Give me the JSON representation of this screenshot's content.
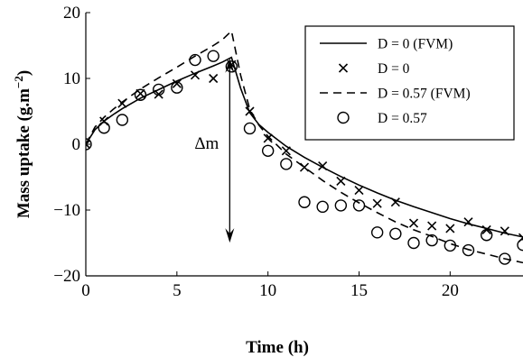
{
  "chart_data": {
    "type": "line",
    "xlabel": "Time (h)",
    "ylabel": "Mass uptake (g.m",
    "ylabel_sup": "−2",
    "ylabel_close": ")",
    "xlim": [
      0,
      24
    ],
    "ylim": [
      -20,
      20
    ],
    "xticks": [
      0,
      5,
      10,
      15,
      20
    ],
    "xtick_labels": [
      "0",
      "5",
      "10",
      "15",
      "20"
    ],
    "yticks": [
      -20,
      -10,
      0,
      10,
      20
    ],
    "ytick_labels": [
      "−20",
      "−10",
      "0",
      "10",
      "20"
    ],
    "grid": false,
    "legend_position": "top-right",
    "annotation": {
      "text": "Δm",
      "x": 8,
      "y_top": 12.5,
      "y_bottom": -15.5
    },
    "series": [
      {
        "name": "D = 0 (FVM)",
        "style": "solid-line",
        "x": [
          0,
          0.5,
          1,
          1.5,
          2,
          3,
          4,
          5,
          6,
          7,
          7.5,
          8,
          8.5,
          9,
          9.5,
          10,
          11,
          12,
          13,
          14,
          15,
          16,
          17,
          18,
          19,
          20,
          21,
          22,
          23,
          24
        ],
        "y": [
          0,
          2.2,
          3.5,
          4.5,
          5.4,
          7.0,
          8.3,
          9.6,
          10.8,
          11.9,
          12.5,
          13.2,
          8.5,
          4.8,
          3.0,
          1.8,
          -0.3,
          -2.0,
          -3.5,
          -4.9,
          -6.2,
          -7.4,
          -8.5,
          -9.5,
          -10.4,
          -11.3,
          -12.1,
          -12.8,
          -13.5,
          -14.1
        ]
      },
      {
        "name": "D = 0",
        "style": "x-marker",
        "x": [
          0,
          1,
          2,
          3,
          4,
          5,
          6,
          7,
          8,
          9,
          10,
          11,
          12,
          13,
          14,
          15,
          16,
          17,
          18,
          19,
          20,
          21,
          22,
          23,
          24
        ],
        "y": [
          0,
          3.5,
          6.2,
          7.7,
          7.6,
          9.2,
          10.5,
          10.0,
          12.1,
          5.0,
          0.9,
          -1.0,
          -3.5,
          -3.3,
          -5.6,
          -7.0,
          -9.0,
          -8.8,
          -12.0,
          -12.4,
          -12.8,
          -11.8,
          -13.0,
          -13.2,
          -14.2
        ]
      },
      {
        "name": "D = 0.57 (FVM)",
        "style": "dashed-line",
        "x": [
          0,
          0.5,
          1,
          1.5,
          2,
          3,
          4,
          5,
          6,
          7,
          7.5,
          8,
          8.5,
          9,
          9.5,
          10,
          11,
          12,
          13,
          14,
          15,
          16,
          17,
          18,
          19,
          20,
          21,
          22,
          23,
          24
        ],
        "y": [
          0,
          2.6,
          4.1,
          5.3,
          6.4,
          8.4,
          10.1,
          11.7,
          13.4,
          15.0,
          15.9,
          17.2,
          10.5,
          5.3,
          2.9,
          1.2,
          -1.5,
          -3.5,
          -5.5,
          -7.3,
          -8.9,
          -10.4,
          -11.8,
          -13.0,
          -14.0,
          -15.1,
          -16.0,
          -16.7,
          -17.4,
          -18.0
        ]
      },
      {
        "name": "D = 0.57",
        "style": "circle-marker",
        "x": [
          0,
          1,
          2,
          3,
          4,
          5,
          6,
          7,
          8,
          9,
          10,
          11,
          12,
          13,
          14,
          15,
          16,
          17,
          18,
          19,
          20,
          21,
          22,
          23,
          24
        ],
        "y": [
          0,
          2.5,
          3.7,
          7.5,
          8.3,
          8.6,
          12.8,
          13.4,
          11.8,
          2.4,
          -1.0,
          -3.0,
          -8.8,
          -9.5,
          -9.3,
          -9.3,
          -13.4,
          -13.6,
          -15.0,
          -14.6,
          -15.4,
          -16.1,
          -13.8,
          -17.4,
          -15.3
        ]
      }
    ]
  }
}
